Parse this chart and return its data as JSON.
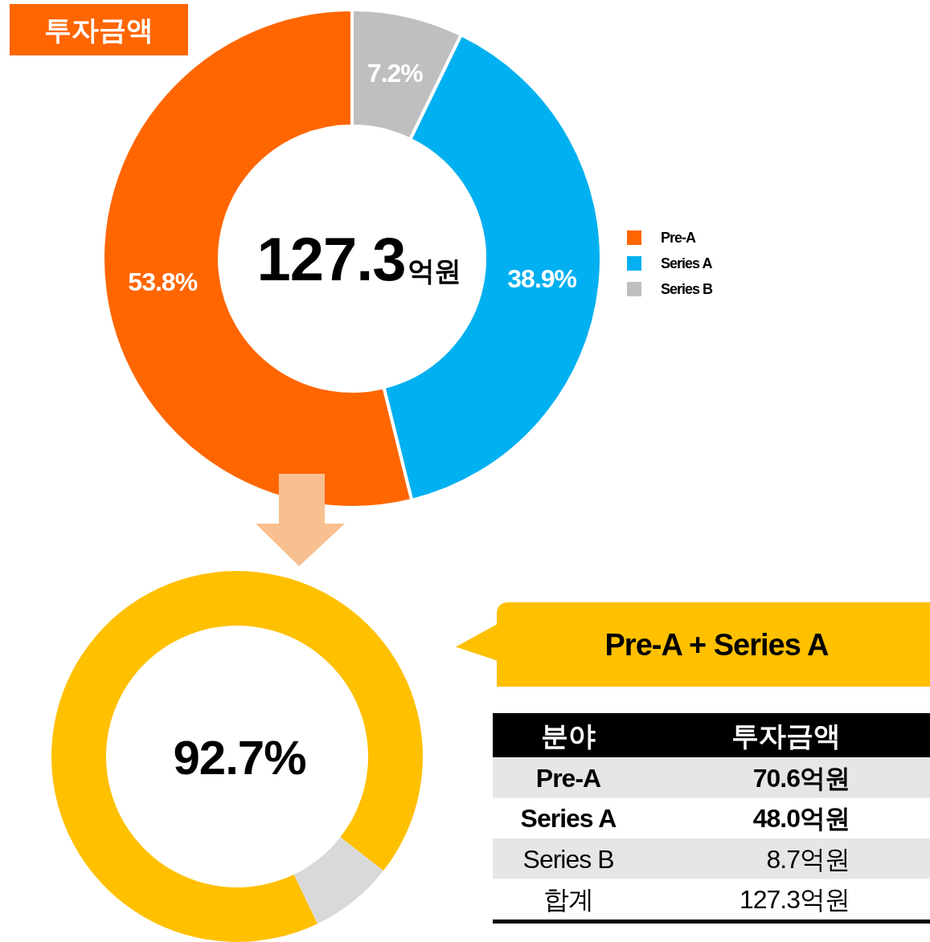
{
  "chart_data": [
    {
      "type": "donut",
      "title": "투자금액",
      "categories": [
        "Pre-A",
        "Series A",
        "Series B"
      ],
      "values": [
        53.8,
        38.9,
        7.2
      ],
      "colors": [
        "#ff6600",
        "#00b0f0",
        "#bfbfbf"
      ],
      "value_labels": [
        "53.8%",
        "38.9%",
        "7.2%"
      ],
      "annotations": [
        "127.3억원"
      ],
      "legend": "right"
    },
    {
      "type": "donut",
      "title": "Pre-A + Series A",
      "categories": [
        null,
        null
      ],
      "values": [
        92.7,
        7.3
      ],
      "colors": [
        "#ffc000",
        "#d9d9d9"
      ],
      "annotations": [
        "92.7%"
      ]
    },
    {
      "type": "other",
      "xlabel": "분야",
      "ylabel": "투자금액",
      "categories": [
        "Pre-A",
        "Series A",
        "Series B",
        "합계"
      ],
      "values": [
        70.6,
        48.0,
        8.7,
        127.3
      ],
      "value_labels": [
        "70.6억원",
        "48.0억원",
        "8.7억원",
        "127.3억원"
      ]
    }
  ]
}
